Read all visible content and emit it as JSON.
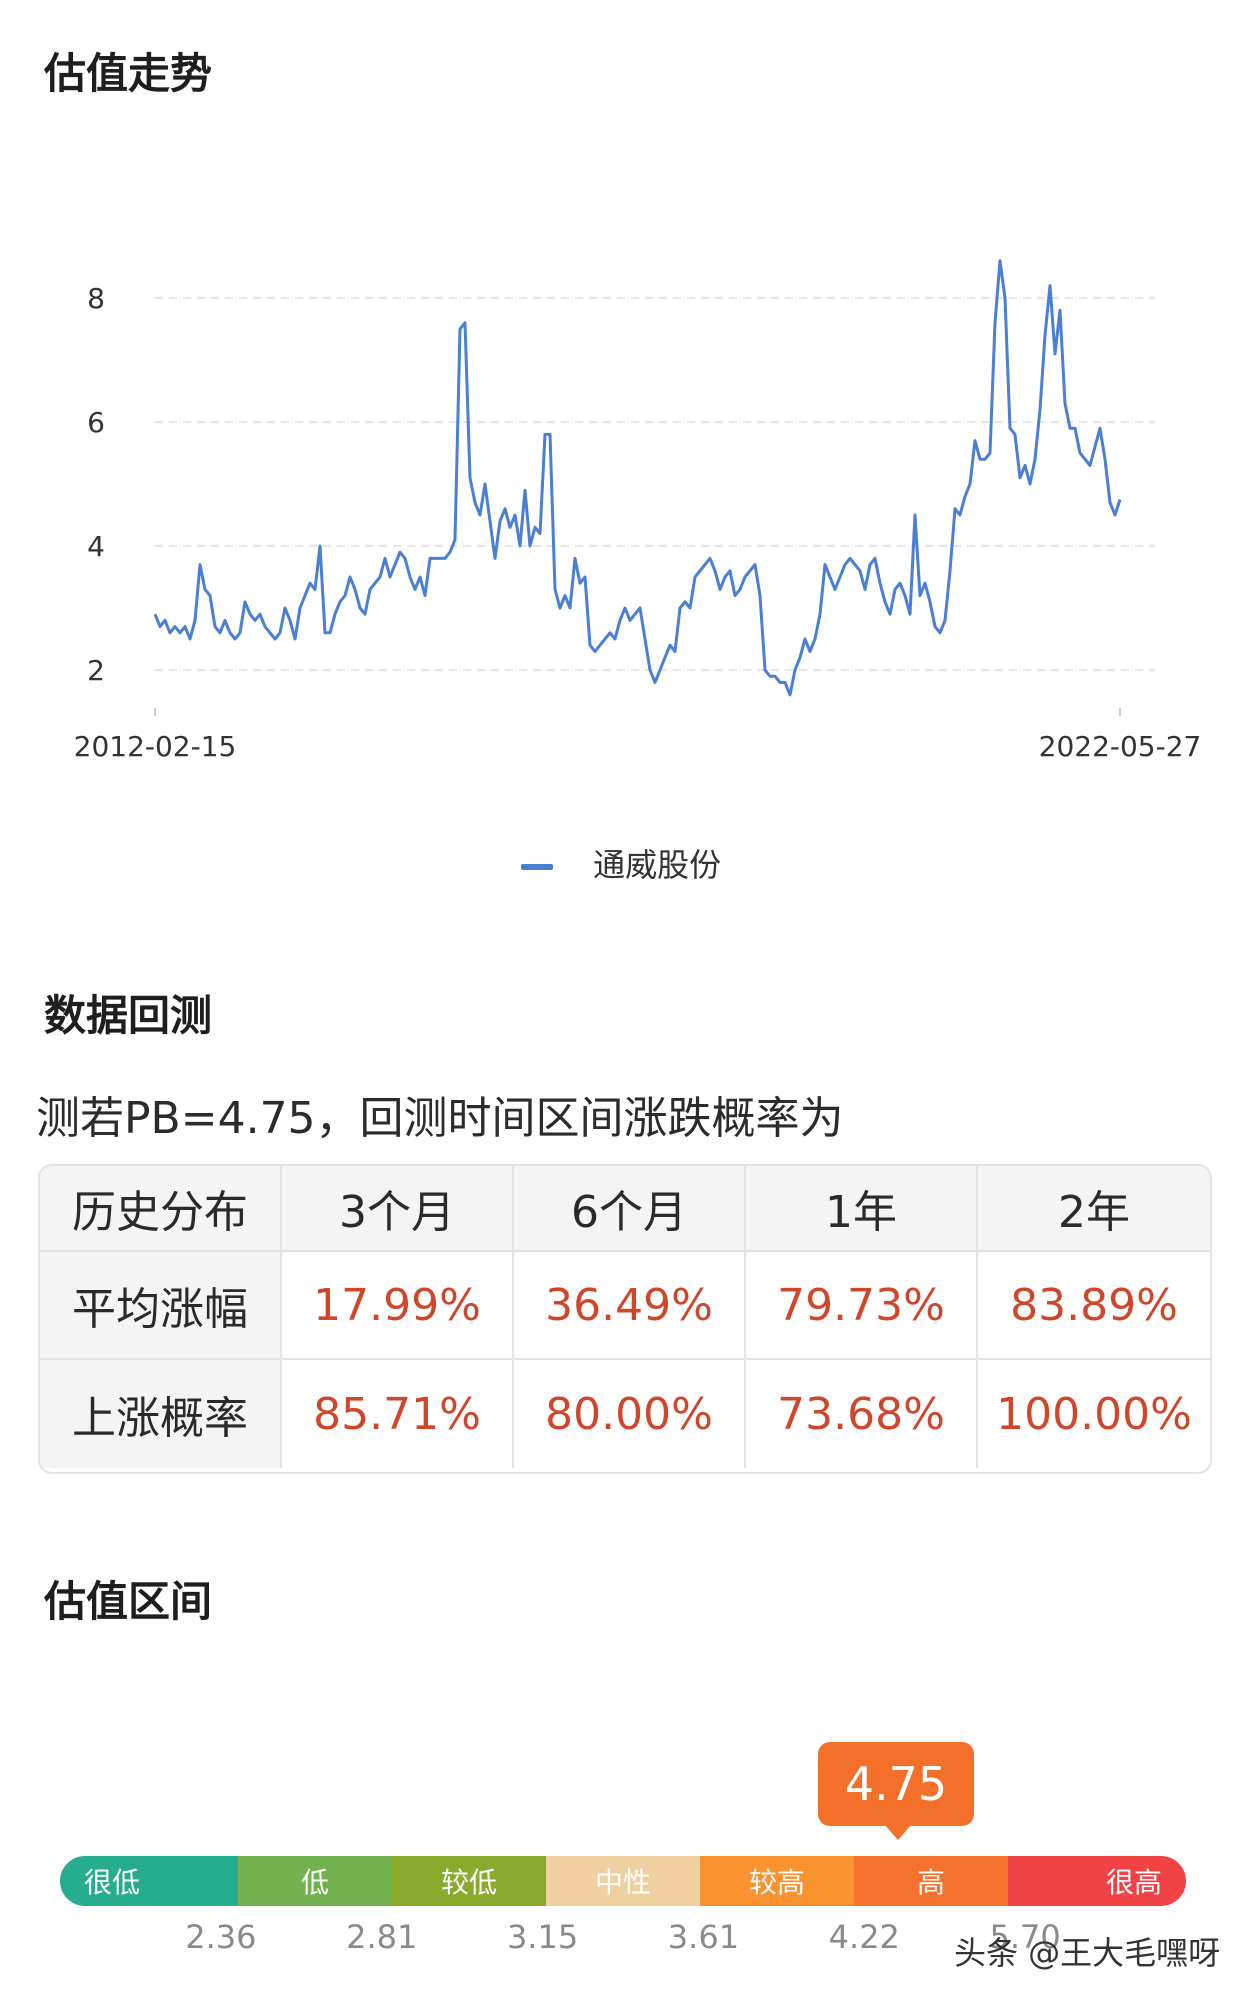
{
  "sections": {
    "trend_title": "估值走势",
    "backtest_title": "数据回测",
    "range_title": "估值区间"
  },
  "chart_data": {
    "type": "line",
    "title": "",
    "x_start_label": "2012-02-15",
    "x_end_label": "2022-05-27",
    "yticks": [
      2,
      4,
      6,
      8
    ],
    "ylim": [
      1.2,
      8.8
    ],
    "grid": true,
    "legend_position": "bottom",
    "series": [
      {
        "name": "通威股份",
        "color": "#4a7fd4",
        "values": [
          2.9,
          2.7,
          2.8,
          2.6,
          2.7,
          2.6,
          2.7,
          2.5,
          2.8,
          3.7,
          3.3,
          3.2,
          2.7,
          2.6,
          2.8,
          2.6,
          2.5,
          2.6,
          3.1,
          2.9,
          2.8,
          2.9,
          2.7,
          2.6,
          2.5,
          2.6,
          3.0,
          2.8,
          2.5,
          3.0,
          3.2,
          3.4,
          3.3,
          4.0,
          2.6,
          2.6,
          2.9,
          3.1,
          3.2,
          3.5,
          3.3,
          3.0,
          2.9,
          3.3,
          3.4,
          3.5,
          3.8,
          3.5,
          3.7,
          3.9,
          3.8,
          3.5,
          3.3,
          3.5,
          3.2,
          3.8,
          3.8,
          3.8,
          3.8,
          3.9,
          4.1,
          7.5,
          7.6,
          5.1,
          4.7,
          4.5,
          5.0,
          4.4,
          3.8,
          4.4,
          4.6,
          4.3,
          4.5,
          4.0,
          4.9,
          4.0,
          4.3,
          4.2,
          5.8,
          5.8,
          3.3,
          3.0,
          3.2,
          3.0,
          3.8,
          3.4,
          3.5,
          2.4,
          2.3,
          2.4,
          2.5,
          2.6,
          2.5,
          2.8,
          3.0,
          2.8,
          2.9,
          3.0,
          2.5,
          2.0,
          1.8,
          2.0,
          2.2,
          2.4,
          2.3,
          3.0,
          3.1,
          3.0,
          3.5,
          3.6,
          3.7,
          3.8,
          3.6,
          3.3,
          3.5,
          3.6,
          3.2,
          3.3,
          3.5,
          3.6,
          3.7,
          3.2,
          2.0,
          1.9,
          1.9,
          1.8,
          1.8,
          1.6,
          2.0,
          2.2,
          2.5,
          2.3,
          2.5,
          2.9,
          3.7,
          3.5,
          3.3,
          3.5,
          3.7,
          3.8,
          3.7,
          3.6,
          3.3,
          3.7,
          3.8,
          3.4,
          3.1,
          2.9,
          3.3,
          3.4,
          3.2,
          2.9,
          4.5,
          3.2,
          3.4,
          3.1,
          2.7,
          2.6,
          2.8,
          3.6,
          4.6,
          4.5,
          4.8,
          5.0,
          5.7,
          5.4,
          5.4,
          5.5,
          7.6,
          8.6,
          8.0,
          5.9,
          5.8,
          5.1,
          5.3,
          5.0,
          5.4,
          6.2,
          7.4,
          8.2,
          7.1,
          7.8,
          6.3,
          5.9,
          5.9,
          5.5,
          5.4,
          5.3,
          5.6,
          5.9,
          5.4,
          4.7,
          4.5,
          4.75
        ]
      }
    ]
  },
  "backtest": {
    "subtitle": "测若PB=4.75，回测时间区间涨跌概率为",
    "headers": [
      "历史分布",
      "3个月",
      "6个月",
      "1年",
      "2年"
    ],
    "rows": [
      {
        "label": "平均涨幅",
        "values": [
          "17.99%",
          "36.49%",
          "79.73%",
          "83.89%"
        ]
      },
      {
        "label": "上涨概率",
        "values": [
          "85.71%",
          "80.00%",
          "73.68%",
          "100.00%"
        ]
      }
    ]
  },
  "valuation_range": {
    "current_value": "4.75",
    "current_position": 0.55,
    "segments": [
      {
        "label": "很低",
        "color": "#26ad8e"
      },
      {
        "label": "低",
        "color": "#72b14e"
      },
      {
        "label": "较低",
        "color": "#8aaa2e"
      },
      {
        "label": "中性",
        "color": "#f0cfa0"
      },
      {
        "label": "较高",
        "color": "#f9922f"
      },
      {
        "label": "高",
        "color": "#f6702e"
      },
      {
        "label": "很高",
        "color": "#f14246"
      }
    ],
    "ticks": [
      "2.36",
      "2.81",
      "3.15",
      "3.61",
      "4.22",
      "5.70"
    ]
  },
  "watermark": "头条 @王大毛嘿呀"
}
